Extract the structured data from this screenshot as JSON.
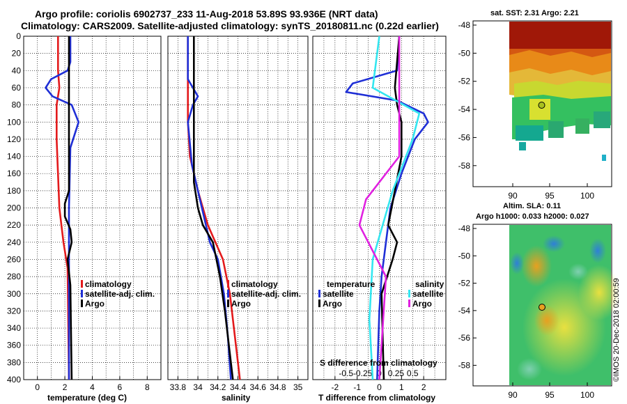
{
  "header": {
    "title_line1": "Argo profile: coriolis 6902737_233 11-Aug-2018 53.89S 93.936E (NRT data)",
    "title_line2": "Climatology: CARS2009. Satellite-adjusted climatology: synTS_20180811.nc (0.22d earlier)"
  },
  "colors": {
    "climatology": "#e31a1c",
    "satellite": "#1f2fd6",
    "argo": "#000000",
    "satellite_salinity": "#33e6f0",
    "climatology_salinity": "#e020e0"
  },
  "depth_axis": {
    "ticks": [
      "0",
      "20",
      "40",
      "60",
      "80",
      "100",
      "120",
      "140",
      "160",
      "180",
      "200",
      "220",
      "240",
      "260",
      "280",
      "300",
      "320",
      "340",
      "360",
      "380",
      "400"
    ]
  },
  "chart_data": [
    {
      "type": "line",
      "name": "temperature",
      "xlabel": "temperature (deg C)",
      "ylabel": "depth",
      "xlim": [
        -1,
        9
      ],
      "ylim": [
        400,
        0
      ],
      "xticks": [
        "0",
        "2",
        "4",
        "6",
        "8"
      ],
      "legend": {
        "climatology": "climatology",
        "satellite": "satellite-adj. clim.",
        "argo": "Argo"
      },
      "series": [
        {
          "name": "climatology",
          "depth": [
            0,
            40,
            60,
            80,
            120,
            200,
            240,
            270,
            400
          ],
          "values": [
            1.5,
            1.5,
            1.6,
            1.4,
            1.4,
            1.6,
            1.9,
            2.2,
            2.3
          ]
        },
        {
          "name": "satellite-adj. clim.",
          "depth": [
            0,
            30,
            40,
            50,
            60,
            70,
            80,
            100,
            130,
            200,
            400
          ],
          "values": [
            2.4,
            2.4,
            2.2,
            1.0,
            0.6,
            1.1,
            2.5,
            3.0,
            2.4,
            2.3,
            2.3
          ]
        },
        {
          "name": "Argo",
          "depth": [
            0,
            180,
            195,
            210,
            225,
            240,
            260,
            290,
            400
          ],
          "values": [
            2.3,
            2.3,
            2.0,
            2.0,
            2.4,
            2.5,
            2.2,
            2.4,
            2.5
          ]
        }
      ]
    },
    {
      "type": "line",
      "name": "salinity",
      "xlabel": "salinity",
      "ylabel": "depth",
      "xlim": [
        33.7,
        35.1
      ],
      "ylim": [
        400,
        0
      ],
      "xticks": [
        "33.8",
        "34",
        "34.2",
        "34.4",
        "34.6",
        "34.8",
        "35"
      ],
      "legend": {
        "climatology": "climatology",
        "satellite": "satellite-adj. clim.",
        "argo": "Argo"
      },
      "series": [
        {
          "name": "climatology",
          "depth": [
            0,
            100,
            140,
            180,
            220,
            260,
            300,
            350,
            400
          ],
          "values": [
            33.9,
            33.9,
            33.92,
            34.0,
            34.1,
            34.25,
            34.32,
            34.37,
            34.42
          ]
        },
        {
          "name": "satellite-adj. clim.",
          "depth": [
            0,
            50,
            60,
            70,
            80,
            100,
            150,
            200,
            240,
            260,
            300,
            350,
            400
          ],
          "values": [
            33.9,
            33.9,
            33.95,
            34.0,
            33.95,
            33.9,
            33.94,
            34.04,
            34.12,
            34.2,
            34.26,
            34.3,
            34.33
          ]
        },
        {
          "name": "Argo",
          "depth": [
            0,
            170,
            200,
            220,
            240,
            280,
            320,
            400
          ],
          "values": [
            33.96,
            33.96,
            34.0,
            34.05,
            34.15,
            34.22,
            34.27,
            34.35
          ]
        }
      ]
    },
    {
      "type": "line",
      "name": "differences",
      "xlabel": "T difference from climatology",
      "x2label": "S difference from climatology",
      "xlim": [
        -3,
        3
      ],
      "ylim": [
        400,
        0
      ],
      "xticks": [
        "-2",
        "-1",
        "0",
        "1",
        "2"
      ],
      "x2ticks": [
        "-0.5",
        "-0.25",
        "0",
        "0.25",
        "0.5"
      ],
      "legend": {
        "temperature": "temperature",
        "salinity": "salinity",
        "satellite": "satellite",
        "argo": "Argo"
      },
      "series": [
        {
          "name": "T satellite",
          "depth": [
            0,
            40,
            55,
            65,
            75,
            90,
            100,
            120,
            160,
            200,
            240,
            280,
            320,
            400
          ],
          "values": [
            0.9,
            0.8,
            -1.2,
            -1.5,
            0.8,
            2.0,
            2.2,
            1.6,
            1.0,
            0.5,
            0.3,
            0.1,
            0.0,
            -0.1
          ]
        },
        {
          "name": "T Argo",
          "depth": [
            0,
            60,
            80,
            100,
            140,
            180,
            220,
            240,
            260,
            300,
            400
          ],
          "values": [
            0.9,
            0.7,
            0.8,
            1.0,
            1.0,
            0.7,
            0.4,
            0.8,
            0.6,
            0.1,
            0.2
          ]
        },
        {
          "name": "S satellite",
          "depth": [
            0,
            60,
            90,
            120,
            180,
            260,
            330,
            400
          ],
          "values": [
            0,
            -0.1,
            0.6,
            0.5,
            0.2,
            -0.1,
            -0.15,
            -0.1
          ]
        },
        {
          "name": "S Argo",
          "depth": [
            0,
            140,
            190,
            220,
            280,
            400
          ],
          "values": [
            0.3,
            0.3,
            -0.2,
            -0.3,
            0.1,
            0.0
          ]
        }
      ]
    }
  ],
  "sst_map": {
    "title": "sat. SST: 2.31 Argo: 2.21",
    "yticks": [
      "-48",
      "-50",
      "-52",
      "-54",
      "-56",
      "-58"
    ],
    "xticks": [
      "90",
      "95",
      "100"
    ]
  },
  "sla_map": {
    "title_line1": "Altim. SLA: 0.11",
    "title_line2": "Argo h1000: 0.033 h2000: 0.027",
    "yticks": [
      "-48",
      "-50",
      "-52",
      "-54",
      "-56",
      "-58"
    ],
    "xticks": [
      "90",
      "95",
      "100"
    ]
  },
  "watermark": "©IMOS 20-Dec-2018 02:00:59"
}
